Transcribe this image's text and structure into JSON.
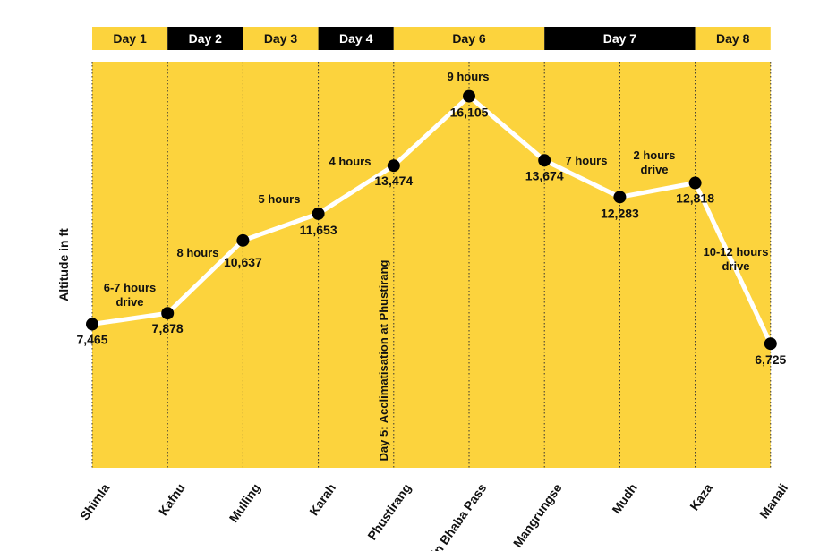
{
  "chart_data": {
    "type": "line",
    "ylabel": "Altitude in ft",
    "categories": [
      "Shimla",
      "Kafnu",
      "Mulling",
      "Karah",
      "Phustirang",
      "Pin Bhaba Pass",
      "Mangrungse",
      "Mudh",
      "Kaza",
      "Manali"
    ],
    "values": [
      7465,
      7878,
      10637,
      11653,
      13474,
      16105,
      13674,
      12283,
      12818,
      6725
    ],
    "value_labels": [
      "7,465",
      "7,878",
      "10,637",
      "11,653",
      "13,474",
      "16,105",
      "13,674",
      "12,283",
      "12,818",
      "6,725"
    ],
    "days": [
      {
        "label": "Day 1",
        "from": 0,
        "to": 1,
        "bg": "#fcd33d",
        "fg": "#111111"
      },
      {
        "label": "Day 2",
        "from": 1,
        "to": 2,
        "bg": "#000000",
        "fg": "#ffffff"
      },
      {
        "label": "Day 3",
        "from": 2,
        "to": 3,
        "bg": "#fcd33d",
        "fg": "#111111"
      },
      {
        "label": "Day 4",
        "from": 3,
        "to": 4,
        "bg": "#000000",
        "fg": "#ffffff"
      },
      {
        "label": "Day 6",
        "from": 4,
        "to": 6,
        "bg": "#fcd33d",
        "fg": "#111111"
      },
      {
        "label": "Day 7",
        "from": 6,
        "to": 8,
        "bg": "#000000",
        "fg": "#ffffff"
      },
      {
        "label": "Day 8",
        "from": 8,
        "to": 9,
        "bg": "#fcd33d",
        "fg": "#111111"
      }
    ],
    "segment_notes": [
      {
        "between": [
          0,
          1
        ],
        "lines": [
          "6-7 hours",
          "drive"
        ]
      },
      {
        "between": [
          1,
          2
        ],
        "lines": [
          "8 hours"
        ]
      },
      {
        "between": [
          2,
          3
        ],
        "lines": [
          "5 hours"
        ]
      },
      {
        "between": [
          3,
          4
        ],
        "lines": [
          "4 hours"
        ]
      },
      {
        "between": [
          4,
          5
        ],
        "lines": [
          "9 hours"
        ]
      },
      {
        "between": [
          5,
          6
        ],
        "lines": [
          "7 hours"
        ]
      },
      {
        "between": [
          6,
          7
        ],
        "lines": [
          "2 hours",
          "drive"
        ]
      },
      {
        "between": [
          8,
          9
        ],
        "lines": [
          "10-12 hours",
          "drive"
        ]
      }
    ],
    "vertical_note": "Day 5: Acclimatisation at Phustirang",
    "grid": true,
    "colors": {
      "background": "#fcd33d",
      "line": "#ffffff",
      "marker": "#000000",
      "gridline": "#333333"
    }
  }
}
